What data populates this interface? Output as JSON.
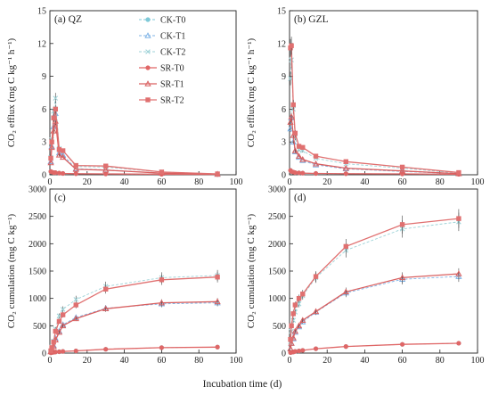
{
  "figure": {
    "xlabel": "Incubation time (d)",
    "colors": {
      "CK-T0": "#7ec9d8",
      "CK-T1": "#7fb3e6",
      "CK-T2": "#9fd3d8",
      "SR-T0": "#e06666",
      "SR-T1": "#d96060",
      "SR-T2": "#e07070",
      "error": "#444444"
    }
  },
  "legend": [
    {
      "label": "CK-T0",
      "marker": "circle",
      "dashed": true
    },
    {
      "label": "CK-T1",
      "marker": "triangle",
      "dashed": true
    },
    {
      "label": "CK-T2",
      "marker": "x",
      "dashed": true
    },
    {
      "label": "SR-T0",
      "marker": "circle",
      "dashed": false
    },
    {
      "label": "SR-T1",
      "marker": "triangle",
      "dashed": false
    },
    {
      "label": "SR-T2",
      "marker": "square",
      "dashed": false
    }
  ],
  "chart_data": [
    {
      "id": "a",
      "type": "line",
      "panel_label": "(a) QZ",
      "ylabel": "CO₂ efflux (mg C kg⁻¹ h⁻¹)",
      "xlim": [
        0,
        100
      ],
      "ylim": [
        0,
        15
      ],
      "xticks": [
        0,
        20,
        40,
        60,
        80,
        100
      ],
      "yticks": [
        0,
        3,
        6,
        9,
        12,
        15
      ],
      "x": [
        0.5,
        1,
        2,
        3,
        5,
        7,
        14,
        30,
        60,
        90
      ],
      "series": [
        {
          "name": "CK-T0",
          "values": [
            0.3,
            0.25,
            0.2,
            0.2,
            0.15,
            0.12,
            0.1,
            0.08,
            0.05,
            0.03
          ]
        },
        {
          "name": "CK-T1",
          "values": [
            1.2,
            2.6,
            4.4,
            5.6,
            2.0,
            1.8,
            0.55,
            0.45,
            0.15,
            0.05
          ]
        },
        {
          "name": "CK-T2",
          "values": [
            1.6,
            3.2,
            5.8,
            7.0,
            2.4,
            2.2,
            0.75,
            0.7,
            0.25,
            0.08
          ]
        },
        {
          "name": "SR-T0",
          "values": [
            0.3,
            0.25,
            0.2,
            0.2,
            0.15,
            0.12,
            0.1,
            0.08,
            0.05,
            0.03
          ]
        },
        {
          "name": "SR-T1",
          "values": [
            1.1,
            2.5,
            4.0,
            4.9,
            1.8,
            1.6,
            0.5,
            0.42,
            0.15,
            0.05
          ]
        },
        {
          "name": "SR-T2",
          "values": [
            1.5,
            3.0,
            5.2,
            6.0,
            2.3,
            2.2,
            0.85,
            0.8,
            0.25,
            0.08
          ]
        }
      ]
    },
    {
      "id": "b",
      "type": "line",
      "panel_label": "(b) GZL",
      "ylabel": "CO₂ efflux (mg C kg⁻¹ h⁻¹)",
      "xlim": [
        0,
        100
      ],
      "ylim": [
        0,
        15
      ],
      "xticks": [
        0,
        20,
        40,
        60,
        80,
        100
      ],
      "yticks": [
        0,
        3,
        6,
        9,
        12,
        15
      ],
      "x": [
        0.5,
        1,
        2,
        3,
        5,
        7,
        14,
        30,
        60,
        90
      ],
      "series": [
        {
          "name": "CK-T0",
          "values": [
            0.4,
            0.3,
            0.25,
            0.2,
            0.18,
            0.15,
            0.12,
            0.1,
            0.08,
            0.05
          ]
        },
        {
          "name": "CK-T1",
          "values": [
            4.2,
            5.2,
            3.0,
            2.1,
            1.6,
            1.3,
            0.9,
            0.55,
            0.3,
            0.1
          ]
        },
        {
          "name": "CK-T2",
          "values": [
            8.8,
            10.5,
            6.0,
            3.4,
            2.3,
            2.2,
            1.5,
            1.0,
            0.6,
            0.15
          ]
        },
        {
          "name": "SR-T0",
          "values": [
            0.4,
            0.3,
            0.25,
            0.2,
            0.18,
            0.15,
            0.12,
            0.1,
            0.08,
            0.05
          ]
        },
        {
          "name": "SR-T1",
          "values": [
            4.8,
            5.3,
            3.6,
            2.2,
            1.7,
            1.4,
            1.0,
            0.6,
            0.35,
            0.1
          ]
        },
        {
          "name": "SR-T2",
          "values": [
            11.6,
            11.8,
            6.4,
            3.8,
            2.6,
            2.5,
            1.7,
            1.2,
            0.7,
            0.2
          ]
        }
      ]
    },
    {
      "id": "c",
      "type": "line",
      "panel_label": "(c)",
      "ylabel": "CO₂ cumulation (mg C kg⁻¹)",
      "xlim": [
        0,
        100
      ],
      "ylim": [
        0,
        3000
      ],
      "xticks": [
        0,
        20,
        40,
        60,
        80,
        100
      ],
      "yticks": [
        0,
        500,
        1000,
        1500,
        2000,
        2500,
        3000
      ],
      "x": [
        0.5,
        1,
        2,
        3,
        5,
        7,
        14,
        30,
        60,
        90
      ],
      "series": [
        {
          "name": "CK-T0",
          "values": [
            5,
            10,
            15,
            20,
            25,
            30,
            40,
            70,
            100,
            110
          ]
        },
        {
          "name": "CK-T1",
          "values": [
            30,
            70,
            140,
            270,
            400,
            520,
            650,
            820,
            900,
            920
          ]
        },
        {
          "name": "CK-T2",
          "values": [
            45,
            110,
            220,
            440,
            680,
            800,
            980,
            1220,
            1380,
            1420
          ]
        },
        {
          "name": "SR-T0",
          "values": [
            5,
            10,
            15,
            20,
            25,
            30,
            40,
            70,
            100,
            110
          ]
        },
        {
          "name": "SR-T1",
          "values": [
            25,
            60,
            120,
            240,
            380,
            500,
            630,
            810,
            920,
            940
          ]
        },
        {
          "name": "SR-T2",
          "values": [
            40,
            100,
            200,
            400,
            580,
            700,
            880,
            1170,
            1340,
            1390
          ]
        }
      ]
    },
    {
      "id": "d",
      "type": "line",
      "panel_label": "(d)",
      "ylabel": "CO₂ cumulation (mg C kg⁻¹)",
      "xlim": [
        0,
        100
      ],
      "ylim": [
        0,
        3000
      ],
      "xticks": [
        0,
        20,
        40,
        60,
        80,
        100
      ],
      "yticks": [
        0,
        500,
        1000,
        1500,
        2000,
        2500,
        3000
      ],
      "x": [
        0.5,
        1,
        2,
        3,
        5,
        7,
        14,
        30,
        60,
        90
      ],
      "series": [
        {
          "name": "CK-T0",
          "values": [
            10,
            15,
            20,
            30,
            40,
            50,
            80,
            120,
            160,
            180
          ]
        },
        {
          "name": "CK-T1",
          "values": [
            80,
            180,
            260,
            380,
            480,
            570,
            750,
            1100,
            1350,
            1400
          ]
        },
        {
          "name": "CK-T2",
          "values": [
            200,
            400,
            600,
            750,
            900,
            1050,
            1380,
            1880,
            2270,
            2400
          ]
        },
        {
          "name": "SR-T0",
          "values": [
            10,
            15,
            20,
            30,
            40,
            50,
            80,
            120,
            160,
            180
          ]
        },
        {
          "name": "SR-T1",
          "values": [
            80,
            180,
            280,
            400,
            500,
            600,
            760,
            1120,
            1380,
            1450
          ]
        },
        {
          "name": "SR-T2",
          "values": [
            250,
            500,
            720,
            880,
            1000,
            1080,
            1400,
            1950,
            2350,
            2460
          ]
        }
      ]
    }
  ]
}
